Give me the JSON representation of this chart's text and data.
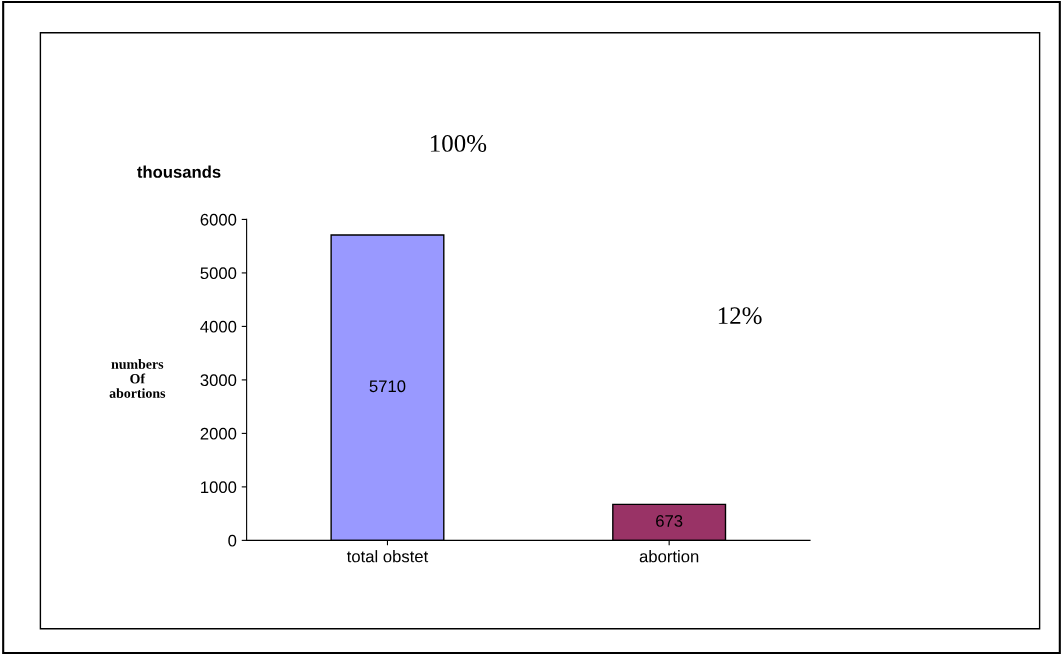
{
  "chart_data": {
    "type": "bar",
    "categories": [
      "total obstet",
      "abortion"
    ],
    "values": [
      5710,
      673
    ],
    "colors": [
      "#9999ff",
      "#993366"
    ],
    "ylabel": "numbers\nOf\nabortions",
    "annotations": [
      "thousands",
      "100%",
      "12%"
    ],
    "ylim": [
      0,
      6000
    ],
    "yticks": [
      0,
      1000,
      2000,
      3000,
      4000,
      5000,
      6000
    ],
    "data_labels": true,
    "grid": false,
    "legend": false
  }
}
